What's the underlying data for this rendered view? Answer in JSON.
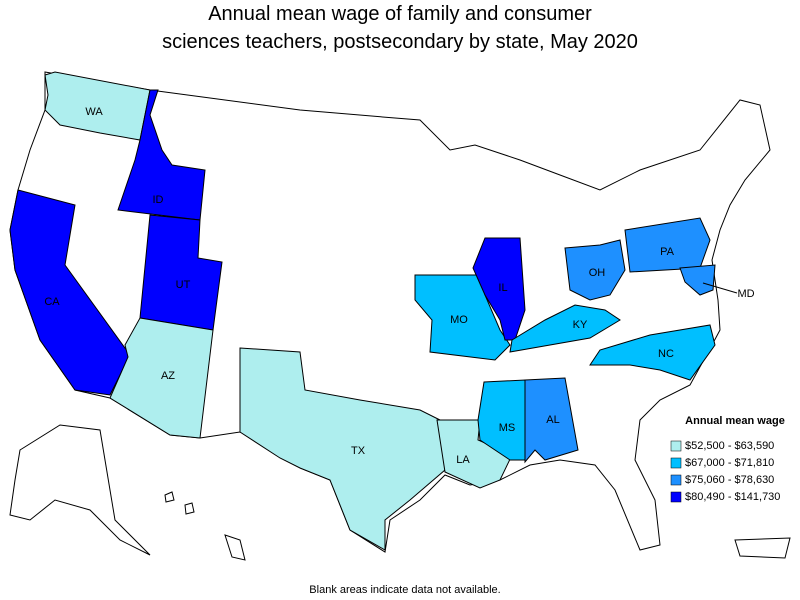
{
  "title": [
    "Annual mean wage of family and consumer",
    "sciences teachers, postsecondary by state, May 2020"
  ],
  "states": [
    {
      "label": "WA",
      "color": "#aeeeee"
    },
    {
      "label": "ID",
      "color": "#0000ff"
    },
    {
      "label": "CA",
      "color": "#0000ff"
    },
    {
      "label": "UT",
      "color": "#0000ff"
    },
    {
      "label": "AZ",
      "color": "#aeeeee"
    },
    {
      "label": "TX",
      "color": "#aeeeee"
    },
    {
      "label": "LA",
      "color": "#aeeeee"
    },
    {
      "label": "MS",
      "color": "#00bfff"
    },
    {
      "label": "AL",
      "color": "#1e90ff"
    },
    {
      "label": "MO",
      "color": "#00bfff"
    },
    {
      "label": "IL",
      "color": "#0000ff"
    },
    {
      "label": "KY",
      "color": "#00bfff"
    },
    {
      "label": "OH",
      "color": "#1e90ff"
    },
    {
      "label": "PA",
      "color": "#1e90ff"
    },
    {
      "label": "MD",
      "color": "#1e90ff"
    },
    {
      "label": "NC",
      "color": "#00bfff"
    }
  ],
  "legend": {
    "title": "Annual mean wage",
    "entries": [
      {
        "label": "$52,500 - $63,590",
        "color": "#aeeeee"
      },
      {
        "label": "$67,000 - $71,810",
        "color": "#00bfff"
      },
      {
        "label": "$75,060 - $78,630",
        "color": "#1e90ff"
      },
      {
        "label": "$80,490 - $141,730",
        "color": "#0000ff"
      }
    ]
  },
  "footnote": "Blank areas indicate data not available."
}
